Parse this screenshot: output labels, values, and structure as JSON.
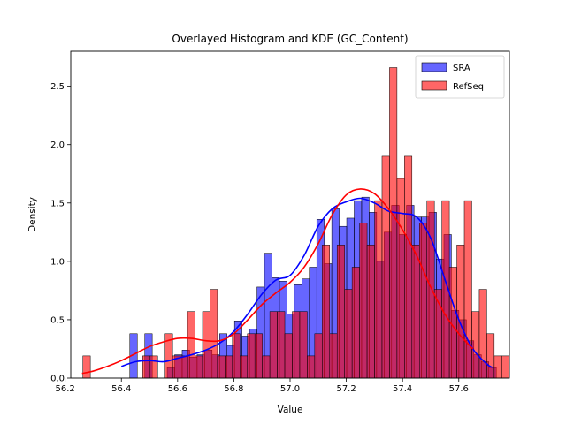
{
  "chart_data": {
    "type": "histogram",
    "title": "Overlayed Histogram and KDE (GC_Content)",
    "xlabel": "Value",
    "ylabel": "Density",
    "xlim": [
      56.22,
      57.78
    ],
    "ylim": [
      0,
      2.8
    ],
    "xticks": [
      "56.2",
      "56.4",
      "56.6",
      "56.8",
      "57.0",
      "57.2",
      "57.4",
      "57.6"
    ],
    "xtick_values": [
      56.2,
      56.4,
      56.6,
      56.8,
      57.0,
      57.2,
      57.4,
      57.6
    ],
    "yticks": [
      "0.0",
      "0.5",
      "1.0",
      "1.5",
      "2.0",
      "2.5"
    ],
    "ytick_values": [
      0,
      0.5,
      1.0,
      1.5,
      2.0,
      2.5
    ],
    "grid": false,
    "legend_position": "top-right",
    "series": [
      {
        "name": "SRA",
        "color": "#0000ff",
        "bar_alpha": 0.6,
        "bin_start": 56.43,
        "bin_width": 0.0266,
        "densities": [
          0.38,
          0.0,
          0.38,
          0.0,
          0.0,
          0.09,
          0.2,
          0.24,
          0.18,
          0.2,
          0.24,
          0.2,
          0.38,
          0.28,
          0.49,
          0.36,
          0.42,
          0.78,
          1.07,
          0.86,
          0.83,
          0.55,
          0.8,
          0.85,
          0.95,
          1.36,
          0.98,
          1.45,
          1.3,
          1.37,
          1.52,
          1.55,
          1.42,
          1.0,
          1.25,
          1.48,
          1.23,
          1.48,
          1.38,
          1.38,
          1.42,
          1.02,
          1.23,
          0.58,
          0.5,
          0.32,
          0.2,
          0.14,
          0.09
        ],
        "kde_x": [
          56.4,
          56.45,
          56.5,
          56.55,
          56.6,
          56.65,
          56.7,
          56.75,
          56.8,
          56.85,
          56.9,
          56.95,
          57.0,
          57.05,
          57.1,
          57.15,
          57.2,
          57.25,
          57.3,
          57.35,
          57.4,
          57.45,
          57.5,
          57.55,
          57.6,
          57.65,
          57.7,
          57.72
        ],
        "kde_y": [
          0.1,
          0.14,
          0.15,
          0.14,
          0.17,
          0.2,
          0.24,
          0.3,
          0.4,
          0.55,
          0.72,
          0.84,
          0.88,
          1.05,
          1.3,
          1.45,
          1.51,
          1.54,
          1.5,
          1.43,
          1.41,
          1.38,
          1.2,
          0.85,
          0.5,
          0.25,
          0.12,
          0.09
        ]
      },
      {
        "name": "RefSeq",
        "color": "#ff0000",
        "bar_alpha": 0.6,
        "bin_start": 56.263,
        "bin_width": 0.0266,
        "densities": [
          0.19,
          0.0,
          0.0,
          0.0,
          0.0,
          0.0,
          0.0,
          0.0,
          0.19,
          0.19,
          0.0,
          0.38,
          0.19,
          0.19,
          0.57,
          0.19,
          0.57,
          0.76,
          0.19,
          0.19,
          0.38,
          0.19,
          0.38,
          0.38,
          0.19,
          0.57,
          0.57,
          0.38,
          0.57,
          0.57,
          0.19,
          0.38,
          1.14,
          0.38,
          1.14,
          0.76,
          0.95,
          1.33,
          1.14,
          1.52,
          1.9,
          2.66,
          1.71,
          1.9,
          1.14,
          1.33,
          1.52,
          0.76,
          1.52,
          0.95,
          1.14,
          1.52,
          0.57,
          0.76,
          0.38,
          0.19,
          0.19
        ]
      },
      {
        "name": "RefSeq KDE",
        "kde_x": [
          56.26,
          56.3,
          56.35,
          56.4,
          56.45,
          56.5,
          56.55,
          56.6,
          56.65,
          56.7,
          56.75,
          56.8,
          56.85,
          56.9,
          56.95,
          57.0,
          57.05,
          57.1,
          57.15,
          57.2,
          57.25,
          57.3,
          57.35,
          57.4,
          57.45,
          57.5,
          57.55,
          57.6,
          57.65
        ],
        "kde_y": [
          0.04,
          0.06,
          0.1,
          0.15,
          0.21,
          0.27,
          0.31,
          0.34,
          0.34,
          0.32,
          0.32,
          0.38,
          0.5,
          0.63,
          0.73,
          0.82,
          0.95,
          1.15,
          1.4,
          1.57,
          1.62,
          1.58,
          1.45,
          1.27,
          1.05,
          0.78,
          0.55,
          0.38,
          0.25
        ]
      }
    ]
  }
}
